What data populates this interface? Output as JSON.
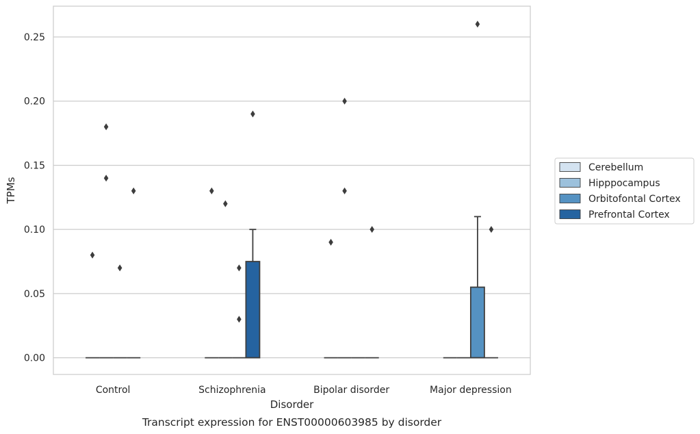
{
  "caption": "Transcript expression for ENST00000603985 by disorder",
  "chart_data": {
    "type": "box",
    "xlabel": "Disorder",
    "ylabel": "TPMs",
    "categories": [
      "Control",
      "Schizophrenia",
      "Bipolar disorder",
      "Major depression"
    ],
    "ylim": [
      -0.013,
      0.274
    ],
    "yticks": [
      "0.00",
      "0.05",
      "0.10",
      "0.15",
      "0.20",
      "0.25"
    ],
    "grid": "horizontal",
    "legend_position": "right",
    "series": [
      {
        "name": "Cerebellum",
        "color": "#d4e3f1",
        "boxes": [
          {
            "q1": 0,
            "median": 0,
            "q3": 0,
            "whisker_high": 0,
            "outliers": [
              0.08
            ]
          },
          {
            "q1": 0,
            "median": 0,
            "q3": 0,
            "whisker_high": 0,
            "outliers": [
              0.13
            ]
          },
          {
            "q1": 0,
            "median": 0,
            "q3": 0,
            "whisker_high": 0,
            "outliers": [
              0.09
            ]
          },
          {
            "q1": 0,
            "median": 0,
            "q3": 0,
            "whisker_high": 0,
            "outliers": []
          }
        ]
      },
      {
        "name": "Hipppocampus",
        "color": "#9cc1dc",
        "boxes": [
          {
            "q1": 0,
            "median": 0,
            "q3": 0,
            "whisker_high": 0,
            "outliers": [
              0.14,
              0.18
            ]
          },
          {
            "q1": 0,
            "median": 0,
            "q3": 0,
            "whisker_high": 0,
            "outliers": [
              0.12
            ]
          },
          {
            "q1": 0,
            "median": 0,
            "q3": 0,
            "whisker_high": 0,
            "outliers": [
              0.13,
              0.2
            ]
          },
          {
            "q1": 0,
            "median": 0,
            "q3": 0,
            "whisker_high": 0,
            "outliers": []
          }
        ]
      },
      {
        "name": "Orbitofontal Cortex",
        "color": "#5592c2",
        "boxes": [
          {
            "q1": 0,
            "median": 0,
            "q3": 0,
            "whisker_high": 0,
            "outliers": [
              0.07
            ]
          },
          {
            "q1": 0,
            "median": 0,
            "q3": 0,
            "whisker_high": 0,
            "outliers": [
              0.03,
              0.07
            ]
          },
          {
            "q1": 0,
            "median": 0,
            "q3": 0,
            "whisker_high": 0,
            "outliers": []
          },
          {
            "q1": 0,
            "median": 0,
            "q3": 0.055,
            "whisker_high": 0.11,
            "outliers": [
              0.26
            ]
          }
        ]
      },
      {
        "name": "Prefrontal Cortex",
        "color": "#2563a0",
        "boxes": [
          {
            "q1": 0,
            "median": 0,
            "q3": 0,
            "whisker_high": 0,
            "outliers": [
              0.13
            ]
          },
          {
            "q1": 0,
            "median": 0,
            "q3": 0.075,
            "whisker_high": 0.1,
            "outliers": [
              0.19
            ]
          },
          {
            "q1": 0,
            "median": 0,
            "q3": 0,
            "whisker_high": 0,
            "outliers": [
              0.1
            ]
          },
          {
            "q1": 0,
            "median": 0,
            "q3": 0,
            "whisker_high": 0,
            "outliers": [
              0.1
            ]
          }
        ]
      }
    ]
  }
}
